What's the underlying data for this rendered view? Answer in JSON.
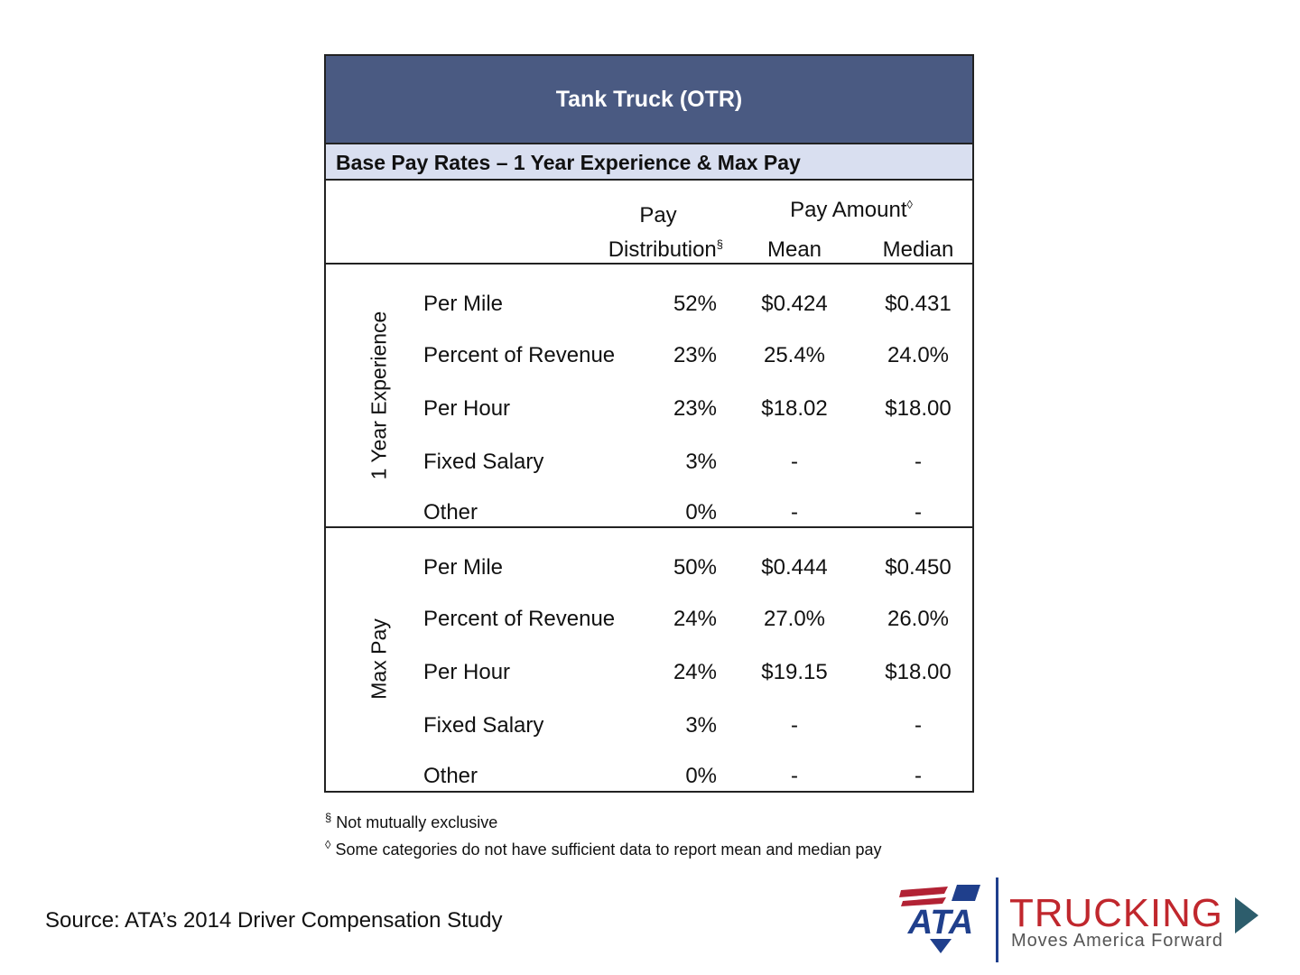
{
  "table": {
    "title": "Tank Truck (OTR)",
    "subtitle": "Base Pay Rates – 1 Year Experience & Max Pay",
    "header": {
      "distribution_lines": [
        "Pay",
        "Distribution"
      ],
      "distribution_mark": "§",
      "amount": "Pay Amount",
      "amount_mark": "◊",
      "mean": "Mean",
      "median": "Median"
    },
    "groups": [
      {
        "label": "1 Year Experience",
        "rows": [
          [
            "Per Mile",
            "52%",
            "$0.424",
            "$0.431"
          ],
          [
            "Percent of Revenue",
            "23%",
            "25.4%",
            "24.0%"
          ],
          [
            "Per Hour",
            "23%",
            "$18.02",
            "$18.00"
          ],
          [
            "Fixed Salary",
            "3%",
            "-",
            "-"
          ],
          [
            "Other",
            "0%",
            "-",
            "-"
          ]
        ]
      },
      {
        "label": "Max Pay",
        "rows": [
          [
            "Per Mile",
            "50%",
            "$0.444",
            "$0.450"
          ],
          [
            "Percent of Revenue",
            "24%",
            "27.0%",
            "26.0%"
          ],
          [
            "Per Hour",
            "24%",
            "$19.15",
            "$18.00"
          ],
          [
            "Fixed Salary",
            "3%",
            "-",
            "-"
          ],
          [
            "Other",
            "0%",
            "-",
            "-"
          ]
        ]
      }
    ]
  },
  "footnotes": [
    {
      "mark": "§",
      "text": "Not mutually exclusive"
    },
    {
      "mark": "◊",
      "text": "Some categories do not have sufficient data to report mean and median pay"
    }
  ],
  "source": "Source: ATA’s 2014 Driver Compensation Study",
  "logo": {
    "ata": "ATA",
    "brand": "TRUCKING",
    "tagline": "Moves America Forward"
  }
}
